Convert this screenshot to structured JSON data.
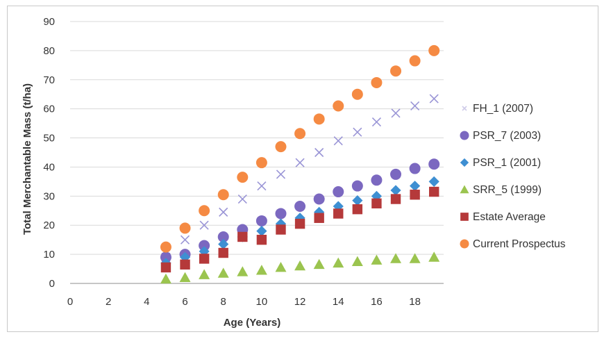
{
  "chart_data": {
    "type": "scatter",
    "title": "",
    "xlabel": "Age (Years)",
    "ylabel": "Total Merchantable Mass (t/ha)",
    "xlim": [
      0,
      19.5
    ],
    "ylim": [
      0,
      90
    ],
    "x_ticks": [
      0,
      2,
      4,
      6,
      8,
      10,
      12,
      14,
      16,
      18
    ],
    "y_ticks": [
      0,
      10,
      20,
      30,
      40,
      50,
      60,
      70,
      80,
      90
    ],
    "grid": "horizontal",
    "legend_position": "right",
    "x": [
      5,
      6,
      7,
      8,
      9,
      10,
      11,
      12,
      13,
      14,
      15,
      16,
      17,
      18,
      19
    ],
    "series": [
      {
        "name": "FH_1 (2007)",
        "marker": "x",
        "color": "#9a95d6",
        "values": [
          9,
          15,
          20,
          24.5,
          29,
          33.5,
          37.5,
          41.5,
          45,
          49,
          52,
          55.5,
          58.5,
          61,
          63.5
        ]
      },
      {
        "name": "PSR_7 (2003)",
        "marker": "circle",
        "color": "#7b68c0",
        "values": [
          9,
          10,
          13,
          16,
          18.5,
          21.5,
          24,
          26.5,
          29,
          31.5,
          33.5,
          35.5,
          37.5,
          39.5,
          41
        ]
      },
      {
        "name": "PSR_1 (2001)",
        "marker": "diamond",
        "color": "#3e8fd2",
        "values": [
          7,
          9,
          11,
          13.5,
          16,
          18,
          20.5,
          22.5,
          24.5,
          26.5,
          28.5,
          30,
          32,
          33.5,
          35
        ]
      },
      {
        "name": "SRR_5 (1999)",
        "marker": "triangle",
        "color": "#9bc44f",
        "values": [
          1.5,
          2,
          3,
          3.5,
          4,
          4.5,
          5.5,
          6,
          6.5,
          7,
          7.5,
          8,
          8.5,
          8.5,
          9
        ]
      },
      {
        "name": "Estate Average",
        "marker": "square",
        "color": "#b5393a",
        "values": [
          5.5,
          6.5,
          8.5,
          10.5,
          16,
          15,
          18.5,
          20.5,
          22.5,
          24,
          25.5,
          27.5,
          29,
          30.5,
          31.5
        ]
      },
      {
        "name": "Current Prospectus",
        "marker": "circle",
        "color": "#f58a43",
        "values": [
          12.5,
          19,
          25,
          30.5,
          36.5,
          41.5,
          47,
          51.5,
          56.5,
          61,
          65,
          69,
          73,
          76.5,
          80
        ]
      }
    ]
  }
}
